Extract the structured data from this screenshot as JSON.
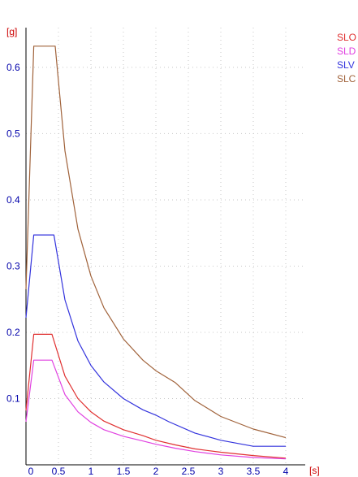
{
  "chart_data": {
    "type": "line",
    "title": "",
    "xlabel": "[s]",
    "ylabel": "[g]",
    "xlim": [
      0,
      4.3
    ],
    "ylim": [
      0,
      0.66
    ],
    "xticks": [
      0,
      0.5,
      1,
      1.5,
      2,
      2.5,
      3,
      3.5,
      4
    ],
    "xtick_labels": [
      "0",
      "0.5",
      "1",
      "1.5",
      "2",
      "2.5",
      "3",
      "3.5",
      "4"
    ],
    "yticks": [
      0.1,
      0.2,
      0.3,
      0.4,
      0.5,
      0.6
    ],
    "ytick_labels": [
      "0.1",
      "0.2",
      "0.3",
      "0.4",
      "0.5",
      "0.6"
    ],
    "grid": true,
    "legend_position": "top-right",
    "series": [
      {
        "name": "SLO",
        "color": "#e03030",
        "x": [
          0,
          0.12,
          0.4,
          0.6,
          0.8,
          1.0,
          1.2,
          1.5,
          1.8,
          2.0,
          2.3,
          2.6,
          3.0,
          3.5,
          4.0
        ],
        "y": [
          0.082,
          0.197,
          0.197,
          0.134,
          0.1,
          0.08,
          0.066,
          0.053,
          0.044,
          0.037,
          0.03,
          0.024,
          0.019,
          0.014,
          0.01
        ]
      },
      {
        "name": "SLD",
        "color": "#e040e0",
        "x": [
          0,
          0.12,
          0.4,
          0.6,
          0.8,
          1.0,
          1.2,
          1.5,
          1.8,
          2.0,
          2.3,
          2.6,
          3.0,
          3.5,
          4.0
        ],
        "y": [
          0.065,
          0.158,
          0.158,
          0.106,
          0.08,
          0.064,
          0.053,
          0.043,
          0.036,
          0.031,
          0.025,
          0.02,
          0.015,
          0.011,
          0.009
        ]
      },
      {
        "name": "SLV",
        "color": "#3333dd",
        "x": [
          0,
          0.12,
          0.43,
          0.6,
          0.8,
          1.0,
          1.2,
          1.5,
          1.8,
          2.0,
          2.2,
          2.6,
          3.0,
          3.5,
          4.0
        ],
        "y": [
          0.222,
          0.347,
          0.347,
          0.249,
          0.187,
          0.15,
          0.125,
          0.1,
          0.083,
          0.075,
          0.065,
          0.048,
          0.037,
          0.028,
          0.028
        ]
      },
      {
        "name": "SLC",
        "color": "#a0623a",
        "x": [
          0,
          0.12,
          0.45,
          0.6,
          0.8,
          1.0,
          1.2,
          1.5,
          1.8,
          2.0,
          2.3,
          2.6,
          3.0,
          3.5,
          4.0
        ],
        "y": [
          0.265,
          0.632,
          0.632,
          0.474,
          0.356,
          0.285,
          0.237,
          0.19,
          0.158,
          0.142,
          0.124,
          0.097,
          0.073,
          0.054,
          0.041
        ]
      }
    ]
  }
}
